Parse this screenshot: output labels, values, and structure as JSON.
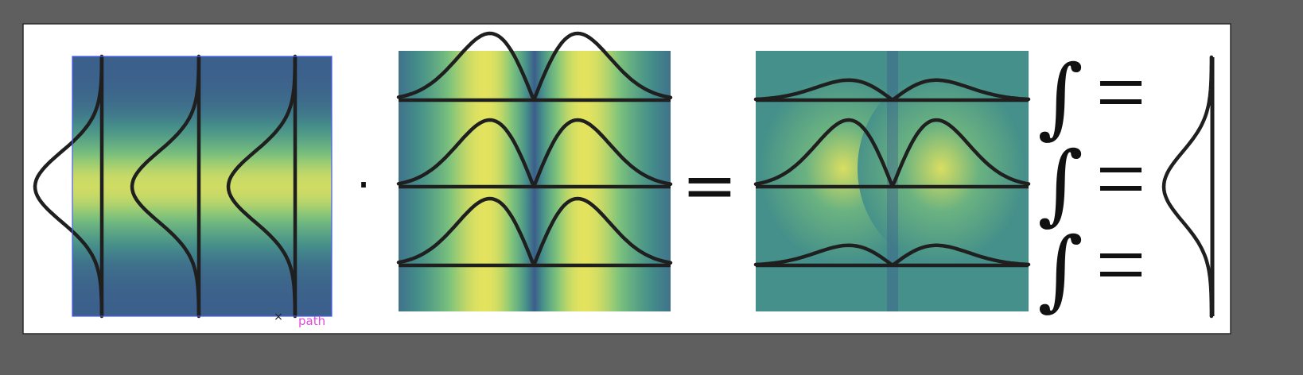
{
  "app": {
    "hover_label": "path",
    "anchor_marker": "×"
  },
  "icons": {
    "anchor": "x-cross-icon"
  },
  "colors": {
    "workspace": "#5f5f5f",
    "artboard": "#ffffff",
    "selection": "#4a5cf0",
    "hover_label": "#e04be0",
    "stroke": "#1f1f1f",
    "field_low": "#3a558c",
    "field_mid": "#45908a",
    "field_green": "#7cc27c",
    "field_high": "#f1e75a"
  },
  "equation": {
    "dot": "·",
    "equals_big": "=",
    "integral": "∫",
    "equals_small": "="
  },
  "panels": [
    {
      "name": "vertical-gaussian-field",
      "role": "factor",
      "waves": 3,
      "shape": "gaussian",
      "orientation": "vertical",
      "selected": true
    },
    {
      "name": "horizontal-derivative-field",
      "role": "factor",
      "waves": 3,
      "shape": "gaussian-derivative-abs",
      "orientation": "horizontal"
    },
    {
      "name": "product-field",
      "role": "result",
      "waves": 3,
      "shape": "product",
      "orientation": "horizontal",
      "row_amplitudes": [
        0.3,
        1.0,
        0.3
      ]
    }
  ],
  "integral_rows": 3,
  "result_curve": {
    "shape": "gaussian",
    "orientation": "vertical"
  }
}
